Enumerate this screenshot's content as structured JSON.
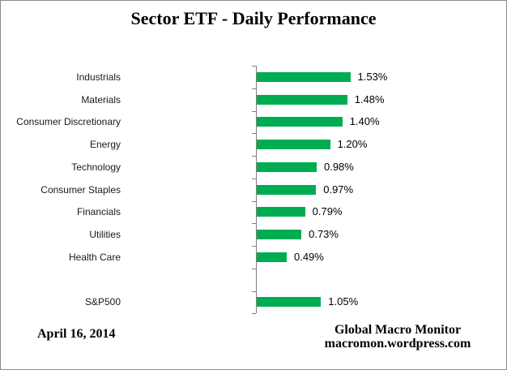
{
  "chart_data": {
    "type": "bar",
    "orientation": "horizontal",
    "title": "Sector ETF - Daily Performance",
    "categories": [
      "Industrials",
      "Materials",
      "Consumer Discretionary",
      "Energy",
      "Technology",
      "Consumer Staples",
      "Financials",
      "Utilities",
      "Health Care",
      "",
      "S&P500"
    ],
    "values": [
      1.53,
      1.48,
      1.4,
      1.2,
      0.98,
      0.97,
      0.79,
      0.73,
      0.49,
      null,
      1.05
    ],
    "value_labels": [
      "1.53%",
      "1.48%",
      "1.40%",
      "1.20%",
      "0.98%",
      "0.97%",
      "0.79%",
      "0.73%",
      "0.49%",
      "",
      "1.05%"
    ],
    "bar_color": "#00AC52",
    "axis_color": "#808080",
    "grid": false,
    "legend": false,
    "value_axis_visible": false
  },
  "footer": {
    "date": "April 16, 2014",
    "source_line1": "Global Macro Monitor",
    "source_line2": "macromon.wordpress.com"
  }
}
